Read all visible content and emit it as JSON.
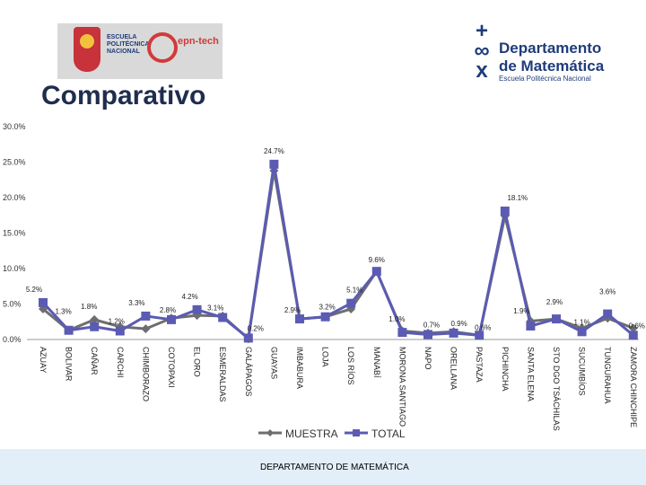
{
  "header": {
    "logo_left": {
      "line1": "ESCUELA",
      "line2": "POLITÉCNICA",
      "line3": "NACIONAL",
      "brand": "epn-tech"
    },
    "logo_right": {
      "line1": "Departamento",
      "line2": "de Matemática",
      "line3": "Escuela Politécnica Nacional"
    },
    "title": "Comparativo"
  },
  "chart_data": {
    "type": "line",
    "categories": [
      "AZUAY",
      "BOLIVAR",
      "CAÑAR",
      "CARCHI",
      "CHIMBORAZO",
      "COTOPAXI",
      "EL ORO",
      "ESMERALDAS",
      "GALÁPAGOS",
      "GUAYAS",
      "IMBABURA",
      "LOJA",
      "LOS RÍOS",
      "MANABÍ",
      "MORONA SANTIAGO",
      "NAPO",
      "ORELLANA",
      "PASTAZA",
      "PICHINCHA",
      "SANTA ELENA",
      "STO DGO TSÁCHILAS",
      "SUCUMBÍOS",
      "TUNGURAHUA",
      "ZAMORA CHINCHIPE"
    ],
    "series": [
      {
        "name": "MUESTRA",
        "color": "#6e6e6e",
        "marker": "diamond",
        "values": [
          4.3,
          1.3,
          2.8,
          1.8,
          1.5,
          3.0,
          3.4,
          3.3,
          0.1,
          23.8,
          2.9,
          3.2,
          4.3,
          9.6,
          1.2,
          0.9,
          1.1,
          0.6,
          17.4,
          2.6,
          2.9,
          1.6,
          3.0,
          1.6
        ]
      },
      {
        "name": "TOTAL",
        "color": "#5b5bb3",
        "marker": "square",
        "values": [
          5.2,
          1.3,
          1.8,
          1.2,
          3.3,
          2.8,
          4.2,
          3.1,
          0.2,
          24.7,
          2.9,
          3.2,
          5.1,
          9.6,
          1.0,
          0.7,
          0.9,
          0.6,
          18.1,
          1.9,
          2.9,
          1.1,
          3.6,
          0.6
        ]
      }
    ],
    "labels": [
      {
        "i": 0,
        "text": "5.2%"
      },
      {
        "i": 1,
        "text": "1.3%"
      },
      {
        "i": 2,
        "text": "1.8%"
      },
      {
        "i": 3,
        "text": "1.2%"
      },
      {
        "i": 4,
        "text": "3.3%"
      },
      {
        "i": 5,
        "text": "2.8%"
      },
      {
        "i": 6,
        "text": "4.2%"
      },
      {
        "i": 7,
        "text": "3.1%"
      },
      {
        "i": 8,
        "text": "0.2%"
      },
      {
        "i": 9,
        "text": "24.7%"
      },
      {
        "i": 10,
        "text": "2.9%"
      },
      {
        "i": 11,
        "text": "3.2%"
      },
      {
        "i": 12,
        "text": "5.1%"
      },
      {
        "i": 13,
        "text": "9.6%"
      },
      {
        "i": 14,
        "text": "1.0%"
      },
      {
        "i": 15,
        "text": "0.7%"
      },
      {
        "i": 16,
        "text": "0.9%"
      },
      {
        "i": 17,
        "text": "0.6%"
      },
      {
        "i": 18,
        "text": "18.1%"
      },
      {
        "i": 19,
        "text": "1.9%"
      },
      {
        "i": 20,
        "text": "2.9%"
      },
      {
        "i": 21,
        "text": "1.1%"
      },
      {
        "i": 22,
        "text": "3.6%"
      },
      {
        "i": 23,
        "text": "0.6%"
      }
    ],
    "yticks": [
      "0.0%",
      "5.0%",
      "10.0%",
      "15.0%",
      "20.0%",
      "25.0%",
      "30.0%"
    ],
    "ylim": [
      0,
      30
    ],
    "grid": false,
    "legend_position": "bottom"
  },
  "footer": {
    "text": "DEPARTAMENTO DE MATEMÁTICA"
  }
}
